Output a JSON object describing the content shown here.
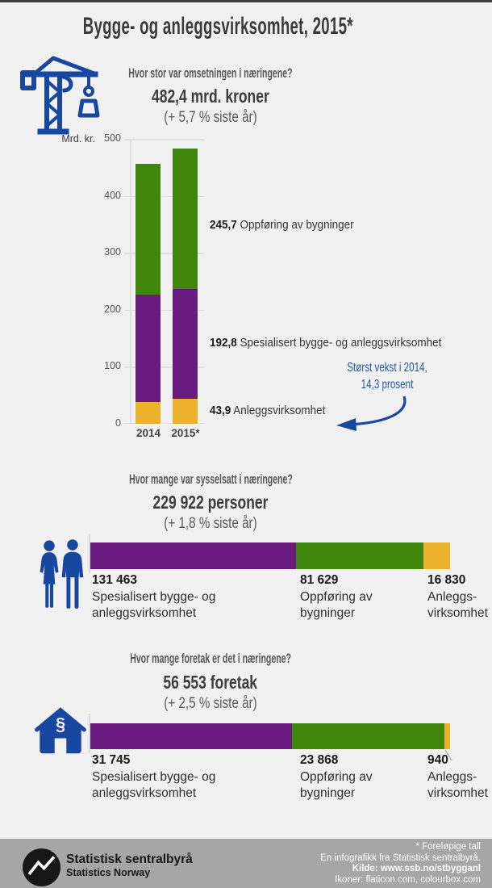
{
  "page": {
    "title": "Bygge- og anleggsvirksomhet, 2015*"
  },
  "colors": {
    "blue": "#17479e",
    "link": "#2456a8",
    "purple": "#6a1b80",
    "green": "#3f860c",
    "yellow": "#ecb22c",
    "footer": "#a6a6a6",
    "background": "#f1f1f1"
  },
  "icons": {
    "crane": "tower-crane-icon",
    "people": "two-persons-icon",
    "house": "house-paragraph-icon",
    "house_glyph": "§",
    "logo": "ssb-logo-circle-zigzag",
    "arrow": "curved-arrow-icon"
  },
  "sections": {
    "omsetning": {
      "question": "Hvor stor var omsetningen i næringene?",
      "headline": "482,4 mrd. kroner",
      "change": "(+ 5,7 % siste år)"
    },
    "sysselsatt": {
      "question": "Hvor mange var sysselsatt i næringene?",
      "headline": "229 922 personer",
      "change": "(+ 1,8 % siste år)"
    },
    "foretak": {
      "question": "Hvor mange foretak er det i næringene?",
      "headline": "56 553 foretak",
      "change": "(+ 2,5 % siste år)"
    }
  },
  "chart_data": [
    {
      "type": "bar",
      "subtype": "stacked-vertical",
      "title": "Hvor stor var omsetningen i næringene?",
      "unit_label": "Mrd. kr.",
      "categories": [
        "2014",
        "2015*"
      ],
      "series": [
        {
          "name": "Anleggsvirksomhet",
          "color": "#ecb22c",
          "values": [
            39,
            43.9
          ],
          "label_2015": "43,9"
        },
        {
          "name": "Spesialisert bygge- og anleggsvirksomhet",
          "color": "#6a1b80",
          "values": [
            188,
            192.8
          ],
          "label_2015": "192,8"
        },
        {
          "name": "Oppføring av bygninger",
          "color": "#3f860c",
          "values": [
            229,
            245.7
          ],
          "label_2015": "245,7"
        }
      ],
      "ylim": [
        0,
        500
      ],
      "yticks": [
        "500",
        "400",
        "300",
        "200",
        "100",
        "0"
      ],
      "grid": true,
      "annotation": {
        "text": [
          "Størst vekst i 2014,",
          "14,3 prosent"
        ],
        "color": "#2456a8"
      }
    },
    {
      "type": "bar",
      "subtype": "stacked-horizontal",
      "title": "Hvor mange var sysselsatt i næringene?",
      "total": 229922,
      "total_label": "229 922 personer",
      "segments": [
        {
          "name": "Spesialisert bygge- og anleggsvirksomhet",
          "color": "#6a1b80",
          "value": 131463,
          "value_label": "131 463"
        },
        {
          "name": "Oppføring av bygninger",
          "color": "#3f860c",
          "value": 81629,
          "value_label": "81 629"
        },
        {
          "name": "Anleggs-virksomhet",
          "color": "#ecb22c",
          "value": 16830,
          "value_label": "16 830"
        }
      ]
    },
    {
      "type": "bar",
      "subtype": "stacked-horizontal",
      "title": "Hvor mange foretak er det i næringene?",
      "total": 56553,
      "total_label": "56 553 foretak",
      "segments": [
        {
          "name": "Spesialisert bygge- og anleggsvirksomhet",
          "color": "#6a1b80",
          "value": 31745,
          "value_label": "31 745"
        },
        {
          "name": "Oppføring av bygninger",
          "color": "#3f860c",
          "value": 23868,
          "value_label": "23 868"
        },
        {
          "name": "Anleggs-virksomhet",
          "color": "#ecb22c",
          "value": 940,
          "value_label": "940"
        }
      ]
    }
  ],
  "footer": {
    "logo_title": "Statistisk sentralbyrå",
    "logo_subtitle": "Statistics Norway",
    "credits": [
      "* Foreløpige tall",
      "En infografikk fra Statistisk sentralbyrå.",
      "Kilde: www.ssb.no/stbygganl",
      "Ikoner: flaticon.com, colourbox.com"
    ]
  }
}
